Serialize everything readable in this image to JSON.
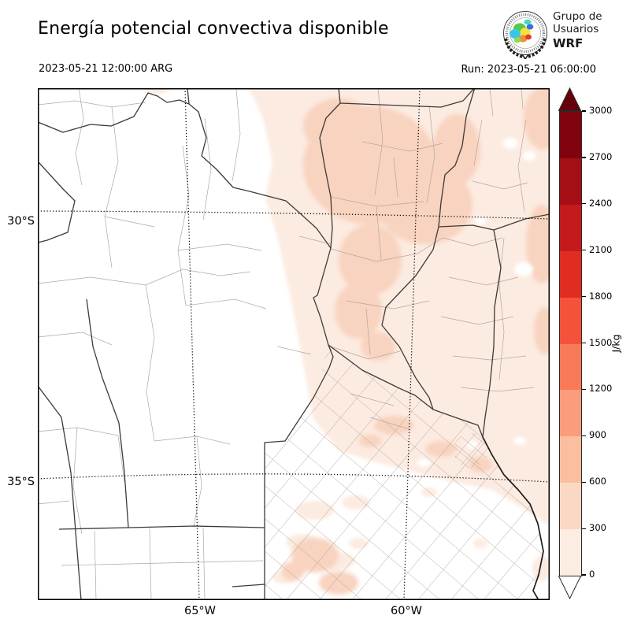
{
  "header": {
    "title": "Energía potencial convectiva disponible",
    "valid_time": "2023-05-21 12:00:00 ARG",
    "run_label": "Run: 2023-05-21 06:00:00",
    "logo": {
      "line1": "Grupo de",
      "line2": "Usuarios",
      "line3": "WRF"
    }
  },
  "axes": {
    "lat_ticks": [
      "30°S",
      "35°S"
    ],
    "lon_ticks": [
      "65°W",
      "60°W"
    ]
  },
  "colorbar": {
    "unit": "J/kg",
    "ticks": [
      "0",
      "300",
      "600",
      "900",
      "1200",
      "1500",
      "1800",
      "2100",
      "2400",
      "2700",
      "3000"
    ],
    "segment_colors_bottom_to_top": [
      "#fdece2",
      "#fbd8c4",
      "#fbbf9f",
      "#fb9d7c",
      "#f97a58",
      "#f4523a",
      "#e02d22",
      "#c41a1c",
      "#a30f15",
      "#7f040f"
    ],
    "arrow_top_color": "#67000d",
    "arrow_bottom_color": "#ffffff"
  },
  "chart_data": {
    "type": "heatmap",
    "title": "Energía potencial convectiva disponible",
    "variable_unit": "J/kg",
    "valid_time": "2023-05-21 12:00:00 ARG",
    "run_time": "2023-05-21 06:00:00",
    "levels": [
      0,
      300,
      600,
      900,
      1200,
      1500,
      1800,
      2100,
      2400,
      2700,
      3000
    ],
    "colormap": "Reds, extended both ends",
    "lat_gridlines": [
      "30°S",
      "35°S"
    ],
    "lon_gridlines": [
      "65°W",
      "60°W"
    ],
    "legend_position": "right",
    "map_reading": "CAPE ~0 J/kg (white) over the western provinces, La Pampa and southern Buenos Aires; 0-300 J/kg (pale pink) over the northeastern/eastern half; patches of 300-600 J/kg over Santiago del Estero, eastern Córdoba, the NE border and northern Buenos Aires"
  }
}
